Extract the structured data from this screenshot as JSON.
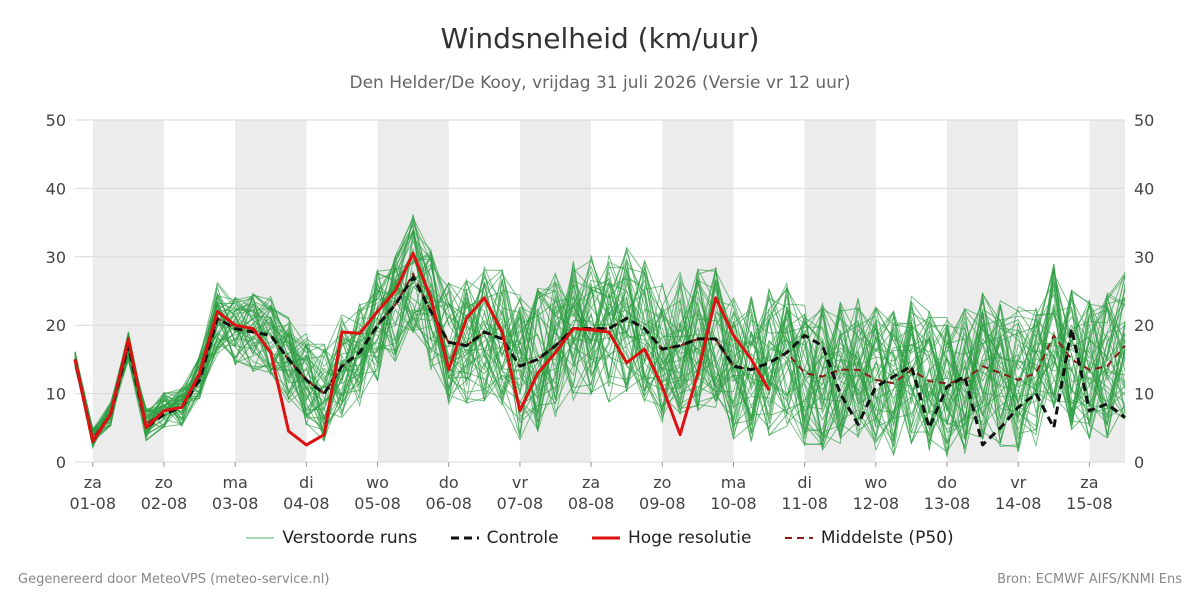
{
  "title": "Windsnelheid (km/uur)",
  "subtitle": "Den Helder/De Kooy, vrijdag 31 juli 2026 (Versie vr 12 uur)",
  "footer_left": "Gegenereerd door MeteoVPS (meteo-service.nl)",
  "footer_right": "Bron: ECMWF AIFS/KNMI Ens",
  "colors": {
    "ensemble": "#2e9e44",
    "control": "#111111",
    "hires": "#dd1111",
    "median": "#8b1a1a",
    "band": "#ececec",
    "grid": "#d9d9d9"
  },
  "chart_data": {
    "type": "line",
    "ylim": [
      0,
      50
    ],
    "y_ticks": [
      0,
      10,
      20,
      30,
      40,
      50
    ],
    "x_unit": "day offset from za 01-08",
    "xlim": [
      -0.25,
      14.5
    ],
    "x_ticks": [
      {
        "day": "za",
        "date": "01-08"
      },
      {
        "day": "zo",
        "date": "02-08"
      },
      {
        "day": "ma",
        "date": "03-08"
      },
      {
        "day": "di",
        "date": "04-08"
      },
      {
        "day": "wo",
        "date": "05-08"
      },
      {
        "day": "do",
        "date": "06-08"
      },
      {
        "day": "vr",
        "date": "07-08"
      },
      {
        "day": "za",
        "date": "08-08"
      },
      {
        "day": "zo",
        "date": "09-08"
      },
      {
        "day": "ma",
        "date": "10-08"
      },
      {
        "day": "di",
        "date": "11-08"
      },
      {
        "day": "wo",
        "date": "12-08"
      },
      {
        "day": "do",
        "date": "13-08"
      },
      {
        "day": "vr",
        "date": "14-08"
      },
      {
        "day": "za",
        "date": "15-08"
      }
    ],
    "legend": [
      {
        "key": "ensemble",
        "label": "Verstoorde runs",
        "style": "thin"
      },
      {
        "key": "control",
        "label": "Controle",
        "style": "dashed-thick"
      },
      {
        "key": "hires",
        "label": "Hoge resolutie",
        "style": "solid-thick"
      },
      {
        "key": "median",
        "label": "Middelste (P50)",
        "style": "dashed"
      }
    ],
    "ensemble_members": 50,
    "series": [
      {
        "name": "Hoge resolutie",
        "key": "hires",
        "x": [
          -0.25,
          0,
          0.25,
          0.5,
          0.75,
          1,
          1.25,
          1.5,
          1.75,
          2,
          2.25,
          2.5,
          2.75,
          3,
          3.25,
          3.5,
          3.75,
          4,
          4.25,
          4.5,
          4.75,
          5,
          5.25,
          5.5,
          5.75,
          6,
          6.25,
          6.5,
          6.75,
          7,
          7.25,
          7.5,
          7.75,
          8,
          8.25,
          8.5,
          8.75,
          9,
          9.25,
          9.5
        ],
        "values": [
          15,
          3,
          7,
          18,
          5,
          7.5,
          8,
          13,
          22,
          20,
          19.5,
          16,
          4.5,
          2.5,
          4,
          19,
          18.8,
          22,
          25,
          30.5,
          24,
          13.5,
          21,
          24,
          19,
          7.5,
          13,
          16,
          19.5,
          19.3,
          19,
          14.5,
          16.5,
          11,
          4,
          13,
          24,
          18.5,
          15,
          10.5
        ]
      },
      {
        "name": "Controle",
        "key": "control",
        "x": [
          -0.25,
          0,
          0.25,
          0.5,
          0.75,
          1,
          1.25,
          1.5,
          1.75,
          2,
          2.25,
          2.5,
          2.75,
          3,
          3.25,
          3.5,
          3.75,
          4,
          4.25,
          4.5,
          4.75,
          5,
          5.25,
          5.5,
          5.75,
          6,
          6.25,
          6.5,
          6.75,
          7,
          7.25,
          7.5,
          7.75,
          8,
          8.25,
          8.5,
          8.75,
          9,
          9.25,
          9.5,
          9.75,
          10,
          10.25,
          10.5,
          10.75,
          11,
          11.25,
          11.5,
          11.75,
          12,
          12.25,
          12.5,
          12.75,
          13,
          13.25,
          13.5,
          13.75,
          14,
          14.25,
          14.5
        ],
        "values": [
          15,
          3,
          7,
          17,
          5,
          7,
          8,
          12,
          21,
          19.5,
          19,
          18.5,
          15,
          12,
          10,
          14,
          16,
          20,
          23,
          27,
          22,
          17.5,
          17,
          19,
          18,
          14,
          15,
          17,
          19.5,
          19.5,
          19.5,
          21,
          19.5,
          16.5,
          17,
          18,
          18,
          14,
          13.5,
          14.5,
          16,
          18.5,
          17,
          10,
          5.5,
          11,
          12.5,
          14,
          5,
          11,
          12.5,
          2.5,
          5,
          8,
          10,
          5,
          19.5,
          7.5,
          8.5,
          6.5
        ]
      },
      {
        "name": "Middelste (P50)",
        "key": "median",
        "x": [
          -0.25,
          0,
          0.25,
          0.5,
          0.75,
          1,
          1.25,
          1.5,
          1.75,
          2,
          2.25,
          2.5,
          2.75,
          3,
          3.25,
          3.5,
          3.75,
          4,
          4.25,
          4.5,
          4.75,
          5,
          5.25,
          5.5,
          5.75,
          6,
          6.25,
          6.5,
          6.75,
          7,
          7.25,
          7.5,
          7.75,
          8,
          8.25,
          8.5,
          8.75,
          9,
          9.25,
          9.5,
          9.75,
          10,
          10.25,
          10.5,
          10.75,
          11,
          11.25,
          11.5,
          11.75,
          12,
          12.25,
          12.5,
          12.75,
          13,
          13.25,
          13.5,
          13.75,
          14,
          14.25,
          14.5
        ],
        "values": [
          15,
          3.5,
          7,
          17,
          5.5,
          7.5,
          8,
          12.5,
          21,
          19.5,
          19,
          18.5,
          15,
          12,
          10,
          14,
          16,
          20,
          23,
          27.5,
          22,
          17.5,
          17,
          19,
          18,
          14,
          15,
          17,
          19.5,
          19.5,
          19.5,
          21,
          19.5,
          16.5,
          17,
          18,
          18,
          14,
          13.5,
          14.5,
          16,
          13,
          12.5,
          13.5,
          13.5,
          12,
          11.5,
          13.5,
          11.8,
          11.5,
          12,
          14,
          13,
          12,
          13,
          18.5,
          15,
          13.5,
          14,
          17
        ]
      }
    ]
  }
}
